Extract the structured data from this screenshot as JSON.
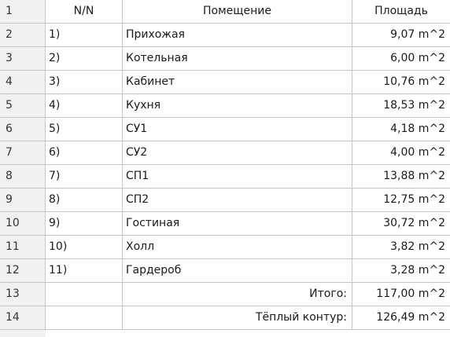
{
  "header": {
    "row_number": "1",
    "col_nn": "N/N",
    "col_room": "Помещение",
    "col_area": "Площадь"
  },
  "rows": [
    {
      "row": "2",
      "nn": "1)",
      "room": "Прихожая",
      "area": "9,07 m^2"
    },
    {
      "row": "3",
      "nn": "2)",
      "room": "Котельная",
      "area": "6,00 m^2"
    },
    {
      "row": "4",
      "nn": "3)",
      "room": "Кабинет",
      "area": "10,76 m^2"
    },
    {
      "row": "5",
      "nn": "4)",
      "room": "Кухня",
      "area": "18,53 m^2"
    },
    {
      "row": "6",
      "nn": "5)",
      "room": "СУ1",
      "area": "4,18 m^2"
    },
    {
      "row": "7",
      "nn": "6)",
      "room": "СУ2",
      "area": "4,00 m^2"
    },
    {
      "row": "8",
      "nn": "7)",
      "room": "СП1",
      "area": "13,88 m^2"
    },
    {
      "row": "9",
      "nn": "8)",
      "room": "СП2",
      "area": "12,75 m^2"
    },
    {
      "row": "10",
      "nn": "9)",
      "room": "Гостиная",
      "area": "30,72 m^2"
    },
    {
      "row": "11",
      "nn": "10)",
      "room": "Холл",
      "area": "3,82 m^2"
    },
    {
      "row": "12",
      "nn": "11)",
      "room": "Гардероб",
      "area": "3,28 m^2"
    }
  ],
  "totals": [
    {
      "row": "13",
      "label": "Итого:",
      "area": "117,00 m^2"
    },
    {
      "row": "14",
      "label": "Тёплый контур:",
      "area": "126,49 m^2"
    }
  ]
}
